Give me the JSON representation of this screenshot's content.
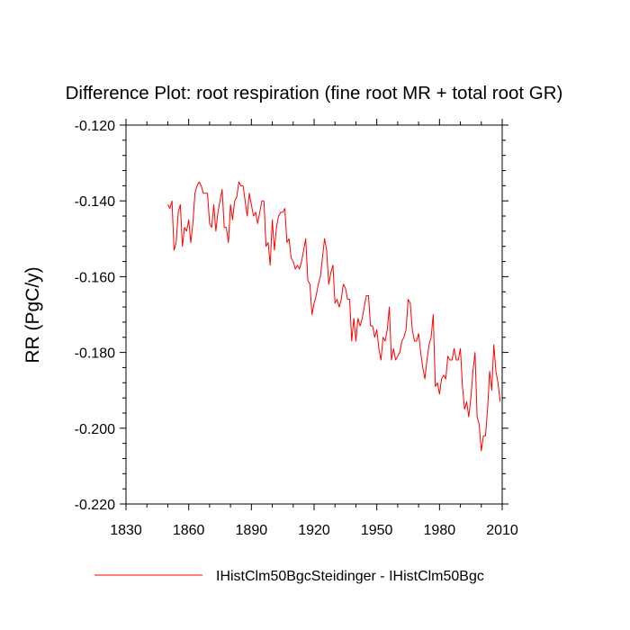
{
  "chart_data": {
    "type": "line",
    "title": "Difference Plot: root respiration (fine root MR + total root GR)",
    "ylabel": "RR  (PgC/y)",
    "xlabel": "",
    "xlim": [
      1830,
      2010
    ],
    "ylim": [
      -0.22,
      -0.12
    ],
    "xticks": [
      1830,
      1860,
      1890,
      1920,
      1950,
      1980,
      2010
    ],
    "xtick_labels": [
      "1830",
      "1860",
      "1890",
      "1920",
      "1950",
      "1980",
      "2010"
    ],
    "yticks": [
      -0.12,
      -0.14,
      -0.16,
      -0.18,
      -0.2,
      -0.22
    ],
    "ytick_labels": [
      "-0.120",
      "-0.140",
      "-0.160",
      "-0.180",
      "-0.200",
      "-0.220"
    ],
    "grid": false,
    "legend_position": "bottom-center",
    "series": [
      {
        "name": "IHistClm50BgcSteidinger - IHistClm50Bgc",
        "color": "#ff0000",
        "x": [
          1850,
          1851,
          1852,
          1853,
          1854,
          1855,
          1856,
          1857,
          1858,
          1859,
          1860,
          1861,
          1862,
          1863,
          1864,
          1865,
          1866,
          1867,
          1868,
          1869,
          1870,
          1871,
          1872,
          1873,
          1874,
          1875,
          1876,
          1877,
          1878,
          1879,
          1880,
          1881,
          1882,
          1883,
          1884,
          1885,
          1886,
          1887,
          1888,
          1889,
          1890,
          1891,
          1892,
          1893,
          1894,
          1895,
          1896,
          1897,
          1898,
          1899,
          1900,
          1901,
          1902,
          1903,
          1904,
          1905,
          1906,
          1907,
          1908,
          1909,
          1910,
          1911,
          1912,
          1913,
          1914,
          1915,
          1916,
          1917,
          1918,
          1919,
          1920,
          1921,
          1922,
          1923,
          1924,
          1925,
          1926,
          1927,
          1928,
          1929,
          1930,
          1931,
          1932,
          1933,
          1934,
          1935,
          1936,
          1937,
          1938,
          1939,
          1940,
          1941,
          1942,
          1943,
          1944,
          1945,
          1946,
          1947,
          1948,
          1949,
          1950,
          1951,
          1952,
          1953,
          1954,
          1955,
          1956,
          1957,
          1958,
          1959,
          1960,
          1961,
          1962,
          1963,
          1964,
          1965,
          1966,
          1967,
          1968,
          1969,
          1970,
          1971,
          1972,
          1973,
          1974,
          1975,
          1976,
          1977,
          1978,
          1979,
          1980,
          1981,
          1982,
          1983,
          1984,
          1985,
          1986,
          1987,
          1988,
          1989,
          1990,
          1991,
          1992,
          1993,
          1994,
          1995,
          1996,
          1997,
          1998,
          1999,
          2000,
          2001,
          2002,
          2003,
          2004,
          2005,
          2006,
          2007,
          2008,
          2009
        ],
        "values": [
          -0.141,
          -0.142,
          -0.14,
          -0.153,
          -0.151,
          -0.143,
          -0.141,
          -0.152,
          -0.147,
          -0.148,
          -0.145,
          -0.151,
          -0.146,
          -0.138,
          -0.136,
          -0.135,
          -0.136,
          -0.138,
          -0.138,
          -0.138,
          -0.146,
          -0.147,
          -0.141,
          -0.148,
          -0.143,
          -0.14,
          -0.137,
          -0.147,
          -0.147,
          -0.151,
          -0.141,
          -0.145,
          -0.14,
          -0.139,
          -0.135,
          -0.136,
          -0.136,
          -0.14,
          -0.144,
          -0.138,
          -0.141,
          -0.144,
          -0.143,
          -0.146,
          -0.143,
          -0.14,
          -0.14,
          -0.152,
          -0.151,
          -0.157,
          -0.145,
          -0.153,
          -0.147,
          -0.144,
          -0.143,
          -0.143,
          -0.142,
          -0.151,
          -0.15,
          -0.155,
          -0.156,
          -0.158,
          -0.157,
          -0.158,
          -0.156,
          -0.153,
          -0.15,
          -0.161,
          -0.162,
          -0.17,
          -0.167,
          -0.165,
          -0.162,
          -0.16,
          -0.155,
          -0.15,
          -0.153,
          -0.162,
          -0.159,
          -0.157,
          -0.167,
          -0.166,
          -0.168,
          -0.166,
          -0.162,
          -0.163,
          -0.166,
          -0.166,
          -0.177,
          -0.171,
          -0.177,
          -0.171,
          -0.173,
          -0.171,
          -0.168,
          -0.165,
          -0.165,
          -0.173,
          -0.173,
          -0.176,
          -0.174,
          -0.179,
          -0.182,
          -0.176,
          -0.177,
          -0.174,
          -0.168,
          -0.182,
          -0.179,
          -0.182,
          -0.181,
          -0.18,
          -0.177,
          -0.176,
          -0.174,
          -0.166,
          -0.167,
          -0.174,
          -0.177,
          -0.177,
          -0.175,
          -0.18,
          -0.184,
          -0.187,
          -0.182,
          -0.178,
          -0.176,
          -0.17,
          -0.189,
          -0.188,
          -0.191,
          -0.187,
          -0.186,
          -0.187,
          -0.181,
          -0.182,
          -0.182,
          -0.179,
          -0.182,
          -0.182,
          -0.179,
          -0.189,
          -0.195,
          -0.193,
          -0.197,
          -0.192,
          -0.185,
          -0.18,
          -0.197,
          -0.199,
          -0.206,
          -0.202,
          -0.202,
          -0.195,
          -0.185,
          -0.19,
          -0.178,
          -0.185,
          -0.188,
          -0.193
        ]
      }
    ]
  }
}
